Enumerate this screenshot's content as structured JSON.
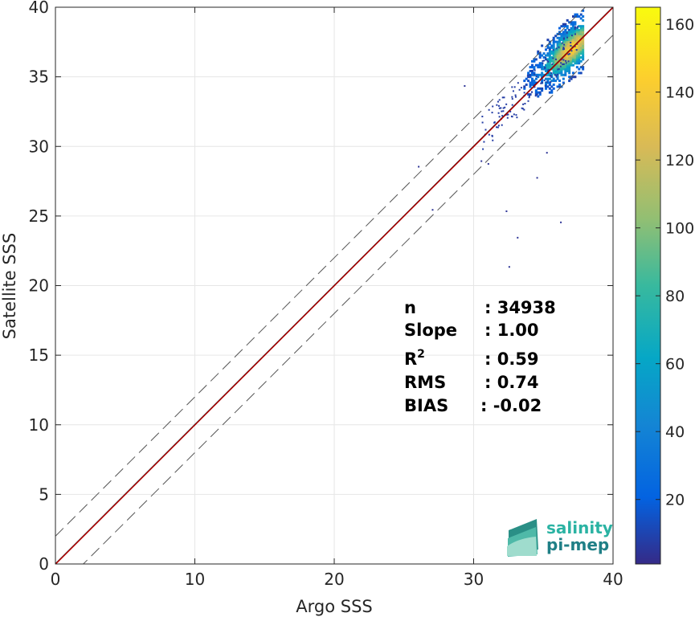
{
  "chart_data": {
    "type": "heatmap",
    "title": "",
    "xlabel": "Argo SSS",
    "ylabel": "Satellite SSS",
    "xlim": [
      0,
      40
    ],
    "ylim": [
      0,
      40
    ],
    "xticks": [
      "0",
      "10",
      "20",
      "30",
      "40"
    ],
    "yticks": [
      "0",
      "5",
      "10",
      "15",
      "20",
      "25",
      "30",
      "35",
      "40"
    ],
    "grid": true,
    "reference_lines": {
      "identity": {
        "slope": 1,
        "intercept": 0,
        "style": "solid",
        "color": "#000000"
      },
      "fit": {
        "slope": 1.0,
        "intercept": -0.02,
        "style": "solid",
        "color": "#c00000"
      },
      "upper_bound": {
        "slope": 1,
        "intercept": 2,
        "style": "dashed",
        "color": "#555555"
      },
      "lower_bound": {
        "slope": 1,
        "intercept": -2,
        "style": "dashed",
        "color": "#555555"
      }
    },
    "density_core": {
      "x_range": [
        33,
        37.8
      ],
      "y_range": [
        32,
        40
      ],
      "peak": [
        37,
        37
      ]
    },
    "outliers": [
      [
        29.3,
        34.4
      ],
      [
        27.0,
        25.5
      ],
      [
        26.0,
        28.6
      ],
      [
        32.3,
        25.4
      ],
      [
        33.1,
        23.5
      ],
      [
        32.5,
        21.4
      ],
      [
        36.2,
        24.6
      ],
      [
        30.5,
        29.0
      ],
      [
        31.0,
        28.8
      ],
      [
        34.5,
        27.8
      ],
      [
        35.2,
        29.6
      ]
    ],
    "colorbar": {
      "ticks": [
        "20",
        "40",
        "60",
        "80",
        "100",
        "120",
        "140",
        "160"
      ],
      "range": [
        1,
        165
      ],
      "colormap": "parula"
    }
  },
  "stats": [
    {
      "name": "n",
      "value": ": 34938"
    },
    {
      "name": "Slope",
      "value": ": 1.00"
    },
    {
      "name": "R",
      "sup": "2",
      "value": ": 0.59"
    },
    {
      "name": "RMS",
      "value": ": 0.74"
    },
    {
      "name": "BIAS",
      "value": ": -0.02"
    }
  ],
  "logo": {
    "line1": "salinity",
    "line2": "pi-mep"
  }
}
